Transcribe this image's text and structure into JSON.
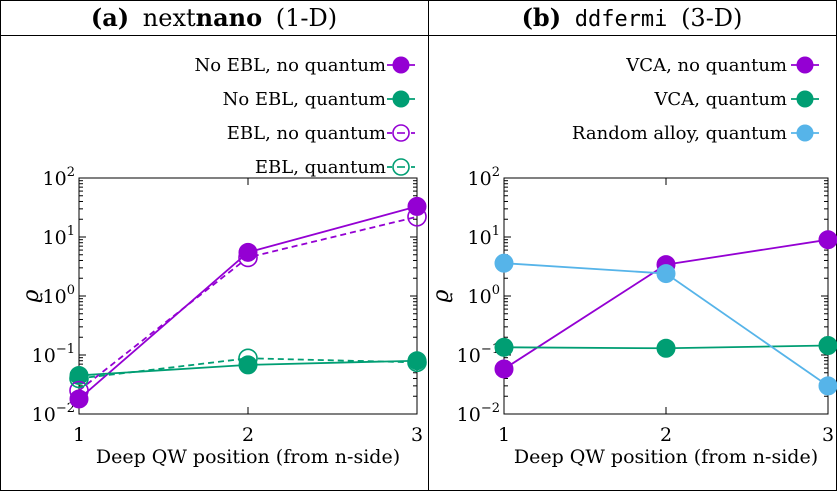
{
  "chart_data": [
    {
      "type": "line",
      "panel": "(a)",
      "title_plain": "next",
      "title_bold": "nano",
      "title_suffix": "(1-D)",
      "xlabel": "Deep QW position (from n-side)",
      "ylabel": "ϱ",
      "yscale": "log",
      "xlim": [
        1,
        3
      ],
      "ylim": [
        0.01,
        100
      ],
      "x_ticks": [
        "1",
        "2",
        "3"
      ],
      "y_ticks": [
        {
          "base": "10",
          "exp": "2",
          "value": 100
        },
        {
          "base": "10",
          "exp": "1",
          "value": 10
        },
        {
          "base": "10",
          "exp": "0",
          "value": 1
        },
        {
          "base": "10",
          "exp": "−1",
          "value": 0.1
        },
        {
          "base": "10",
          "exp": "−2",
          "value": 0.01
        }
      ],
      "legend_position": "top-right",
      "series": [
        {
          "name": "No EBL, no quantum",
          "color": "#9400d3",
          "dash": false,
          "filled": true,
          "x": [
            1,
            2,
            3
          ],
          "values": [
            0.018,
            5.5,
            33
          ]
        },
        {
          "name": "No EBL, quantum",
          "color": "#009e73",
          "dash": false,
          "filled": true,
          "x": [
            1,
            2,
            3
          ],
          "values": [
            0.045,
            0.068,
            0.08
          ]
        },
        {
          "name": "EBL, no quantum",
          "color": "#9400d3",
          "dash": true,
          "filled": false,
          "x": [
            1,
            2,
            3
          ],
          "values": [
            0.025,
            4.5,
            22
          ]
        },
        {
          "name": "EBL, quantum",
          "color": "#009e73",
          "dash": true,
          "filled": false,
          "x": [
            1,
            2,
            3
          ],
          "values": [
            0.04,
            0.088,
            0.075
          ]
        }
      ]
    },
    {
      "type": "line",
      "panel": "(b)",
      "title_mono": "ddfermi",
      "title_suffix": "(3-D)",
      "xlabel": "Deep QW position (from n-side)",
      "ylabel": "ϱ",
      "yscale": "log",
      "xlim": [
        1,
        3
      ],
      "ylim": [
        0.01,
        100
      ],
      "x_ticks": [
        "1",
        "2",
        "3"
      ],
      "y_ticks": [
        {
          "base": "10",
          "exp": "2",
          "value": 100
        },
        {
          "base": "10",
          "exp": "1",
          "value": 10
        },
        {
          "base": "10",
          "exp": "0",
          "value": 1
        },
        {
          "base": "10",
          "exp": "−1",
          "value": 0.1
        },
        {
          "base": "10",
          "exp": "−2",
          "value": 0.01
        }
      ],
      "legend_position": "top-right",
      "series": [
        {
          "name": "VCA, no quantum",
          "color": "#9400d3",
          "dash": false,
          "filled": true,
          "x": [
            1,
            2,
            3
          ],
          "values": [
            0.058,
            3.4,
            9
          ]
        },
        {
          "name": "VCA, quantum",
          "color": "#009e73",
          "dash": false,
          "filled": true,
          "x": [
            1,
            2,
            3
          ],
          "values": [
            0.135,
            0.13,
            0.145
          ]
        },
        {
          "name": "Random alloy, quantum",
          "color": "#56b4e9",
          "dash": false,
          "filled": true,
          "x": [
            1,
            2,
            3
          ],
          "values": [
            3.6,
            2.4,
            0.03
          ]
        }
      ]
    }
  ]
}
